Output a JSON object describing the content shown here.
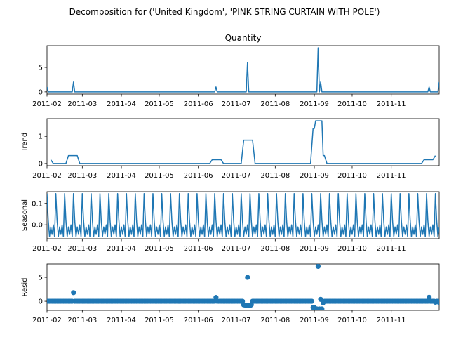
{
  "figure": {
    "title": "Decomposition for ('United Kingdom', 'PINK STRING CURTAIN WITH POLE')",
    "color": "#1f77b4",
    "x_tick_labels": [
      "2011-02",
      "2011-03",
      "2011-04",
      "2011-05",
      "2011-06",
      "2011-07",
      "2011-08",
      "2011-09",
      "2011-10",
      "2011-11"
    ]
  },
  "chart_data": [
    {
      "type": "line",
      "title": "Quantity",
      "ylabel": "",
      "ylim": [
        -0.45,
        9.45
      ],
      "yticks": [
        0,
        5
      ],
      "xlim": [
        "2011-02-01",
        "2011-12-09"
      ],
      "points": [
        [
          "2011-02-01",
          1
        ],
        [
          "2011-02-02",
          0
        ],
        [
          "2011-02-21",
          0
        ],
        [
          "2011-02-22",
          2
        ],
        [
          "2011-02-23",
          0
        ],
        [
          "2011-06-14",
          0
        ],
        [
          "2011-06-15",
          1
        ],
        [
          "2011-06-16",
          0
        ],
        [
          "2011-07-09",
          0
        ],
        [
          "2011-07-10",
          6
        ],
        [
          "2011-07-11",
          0
        ],
        [
          "2011-09-03",
          0
        ],
        [
          "2011-09-04",
          9
        ],
        [
          "2011-09-05",
          0
        ],
        [
          "2011-09-06",
          2
        ],
        [
          "2011-09-07",
          0
        ],
        [
          "2011-11-30",
          0
        ],
        [
          "2011-12-01",
          1
        ],
        [
          "2011-12-02",
          0
        ],
        [
          "2011-12-08",
          0
        ],
        [
          "2011-12-09",
          2
        ]
      ]
    },
    {
      "type": "line",
      "title": "",
      "ylabel": "Trend",
      "ylim": [
        -0.08,
        1.65
      ],
      "yticks": [
        0,
        1
      ],
      "xlim": [
        "2011-02-01",
        "2011-12-09"
      ],
      "points": [
        [
          "2011-02-04",
          0.14
        ],
        [
          "2011-02-06",
          0
        ],
        [
          "2011-02-16",
          0
        ],
        [
          "2011-02-18",
          0.29
        ],
        [
          "2011-02-25",
          0.29
        ],
        [
          "2011-02-27",
          0
        ],
        [
          "2011-06-10",
          0
        ],
        [
          "2011-06-12",
          0.14
        ],
        [
          "2011-06-19",
          0.14
        ],
        [
          "2011-06-21",
          0
        ],
        [
          "2011-07-05",
          0
        ],
        [
          "2011-07-07",
          0.86
        ],
        [
          "2011-07-14",
          0.86
        ],
        [
          "2011-07-16",
          0
        ],
        [
          "2011-08-29",
          0
        ],
        [
          "2011-08-31",
          1.29
        ],
        [
          "2011-09-01",
          1.29
        ],
        [
          "2011-09-02",
          1.57
        ],
        [
          "2011-09-07",
          1.57
        ],
        [
          "2011-09-08",
          0.29
        ],
        [
          "2011-09-09",
          0.29
        ],
        [
          "2011-09-11",
          0
        ],
        [
          "2011-11-25",
          0
        ],
        [
          "2011-11-27",
          0.14
        ],
        [
          "2011-12-04",
          0.14
        ],
        [
          "2011-12-06",
          0.29
        ]
      ]
    },
    {
      "type": "line",
      "title": "",
      "ylabel": "Seasonal",
      "ylim": [
        -0.065,
        0.155
      ],
      "yticks": [
        0,
        0.1
      ],
      "ytick_labels": [
        "0.0",
        "0.1"
      ],
      "xlim": [
        "2011-02-01",
        "2011-12-09"
      ],
      "periodic": {
        "start": "2011-02-01",
        "end": "2011-12-09",
        "period_days": 7,
        "pattern": [
          0.146,
          0.02,
          -0.055,
          -0.01,
          -0.045,
          0.0,
          -0.056
        ]
      }
    },
    {
      "type": "scatter",
      "title": "",
      "ylabel": "Resid",
      "ylim": [
        -1.9,
        7.8
      ],
      "yticks": [
        0,
        5
      ],
      "xlim": [
        "2011-02-01",
        "2011-12-09"
      ],
      "baseline": {
        "start": "2011-02-01",
        "end": "2011-12-09",
        "step_days": 1,
        "value": 0
      },
      "points": [
        [
          "2011-02-22",
          1.8
        ],
        [
          "2011-06-15",
          0.8
        ],
        [
          "2011-07-07",
          -0.75
        ],
        [
          "2011-07-08",
          -0.8
        ],
        [
          "2011-07-09",
          -0.85
        ],
        [
          "2011-07-10",
          5.0
        ],
        [
          "2011-07-11",
          -0.85
        ],
        [
          "2011-07-12",
          -0.9
        ],
        [
          "2011-07-13",
          -0.75
        ],
        [
          "2011-08-31",
          -1.3
        ],
        [
          "2011-09-01",
          -1.3
        ],
        [
          "2011-09-02",
          -1.55
        ],
        [
          "2011-09-03",
          -1.6
        ],
        [
          "2011-09-04",
          7.3
        ],
        [
          "2011-09-05",
          -1.6
        ],
        [
          "2011-09-06",
          0.4
        ],
        [
          "2011-09-07",
          -1.6
        ],
        [
          "2011-09-08",
          -0.3
        ],
        [
          "2011-12-01",
          0.85
        ],
        [
          "2011-12-06",
          -0.2
        ],
        [
          "2011-12-09",
          -0.25
        ]
      ]
    }
  ]
}
